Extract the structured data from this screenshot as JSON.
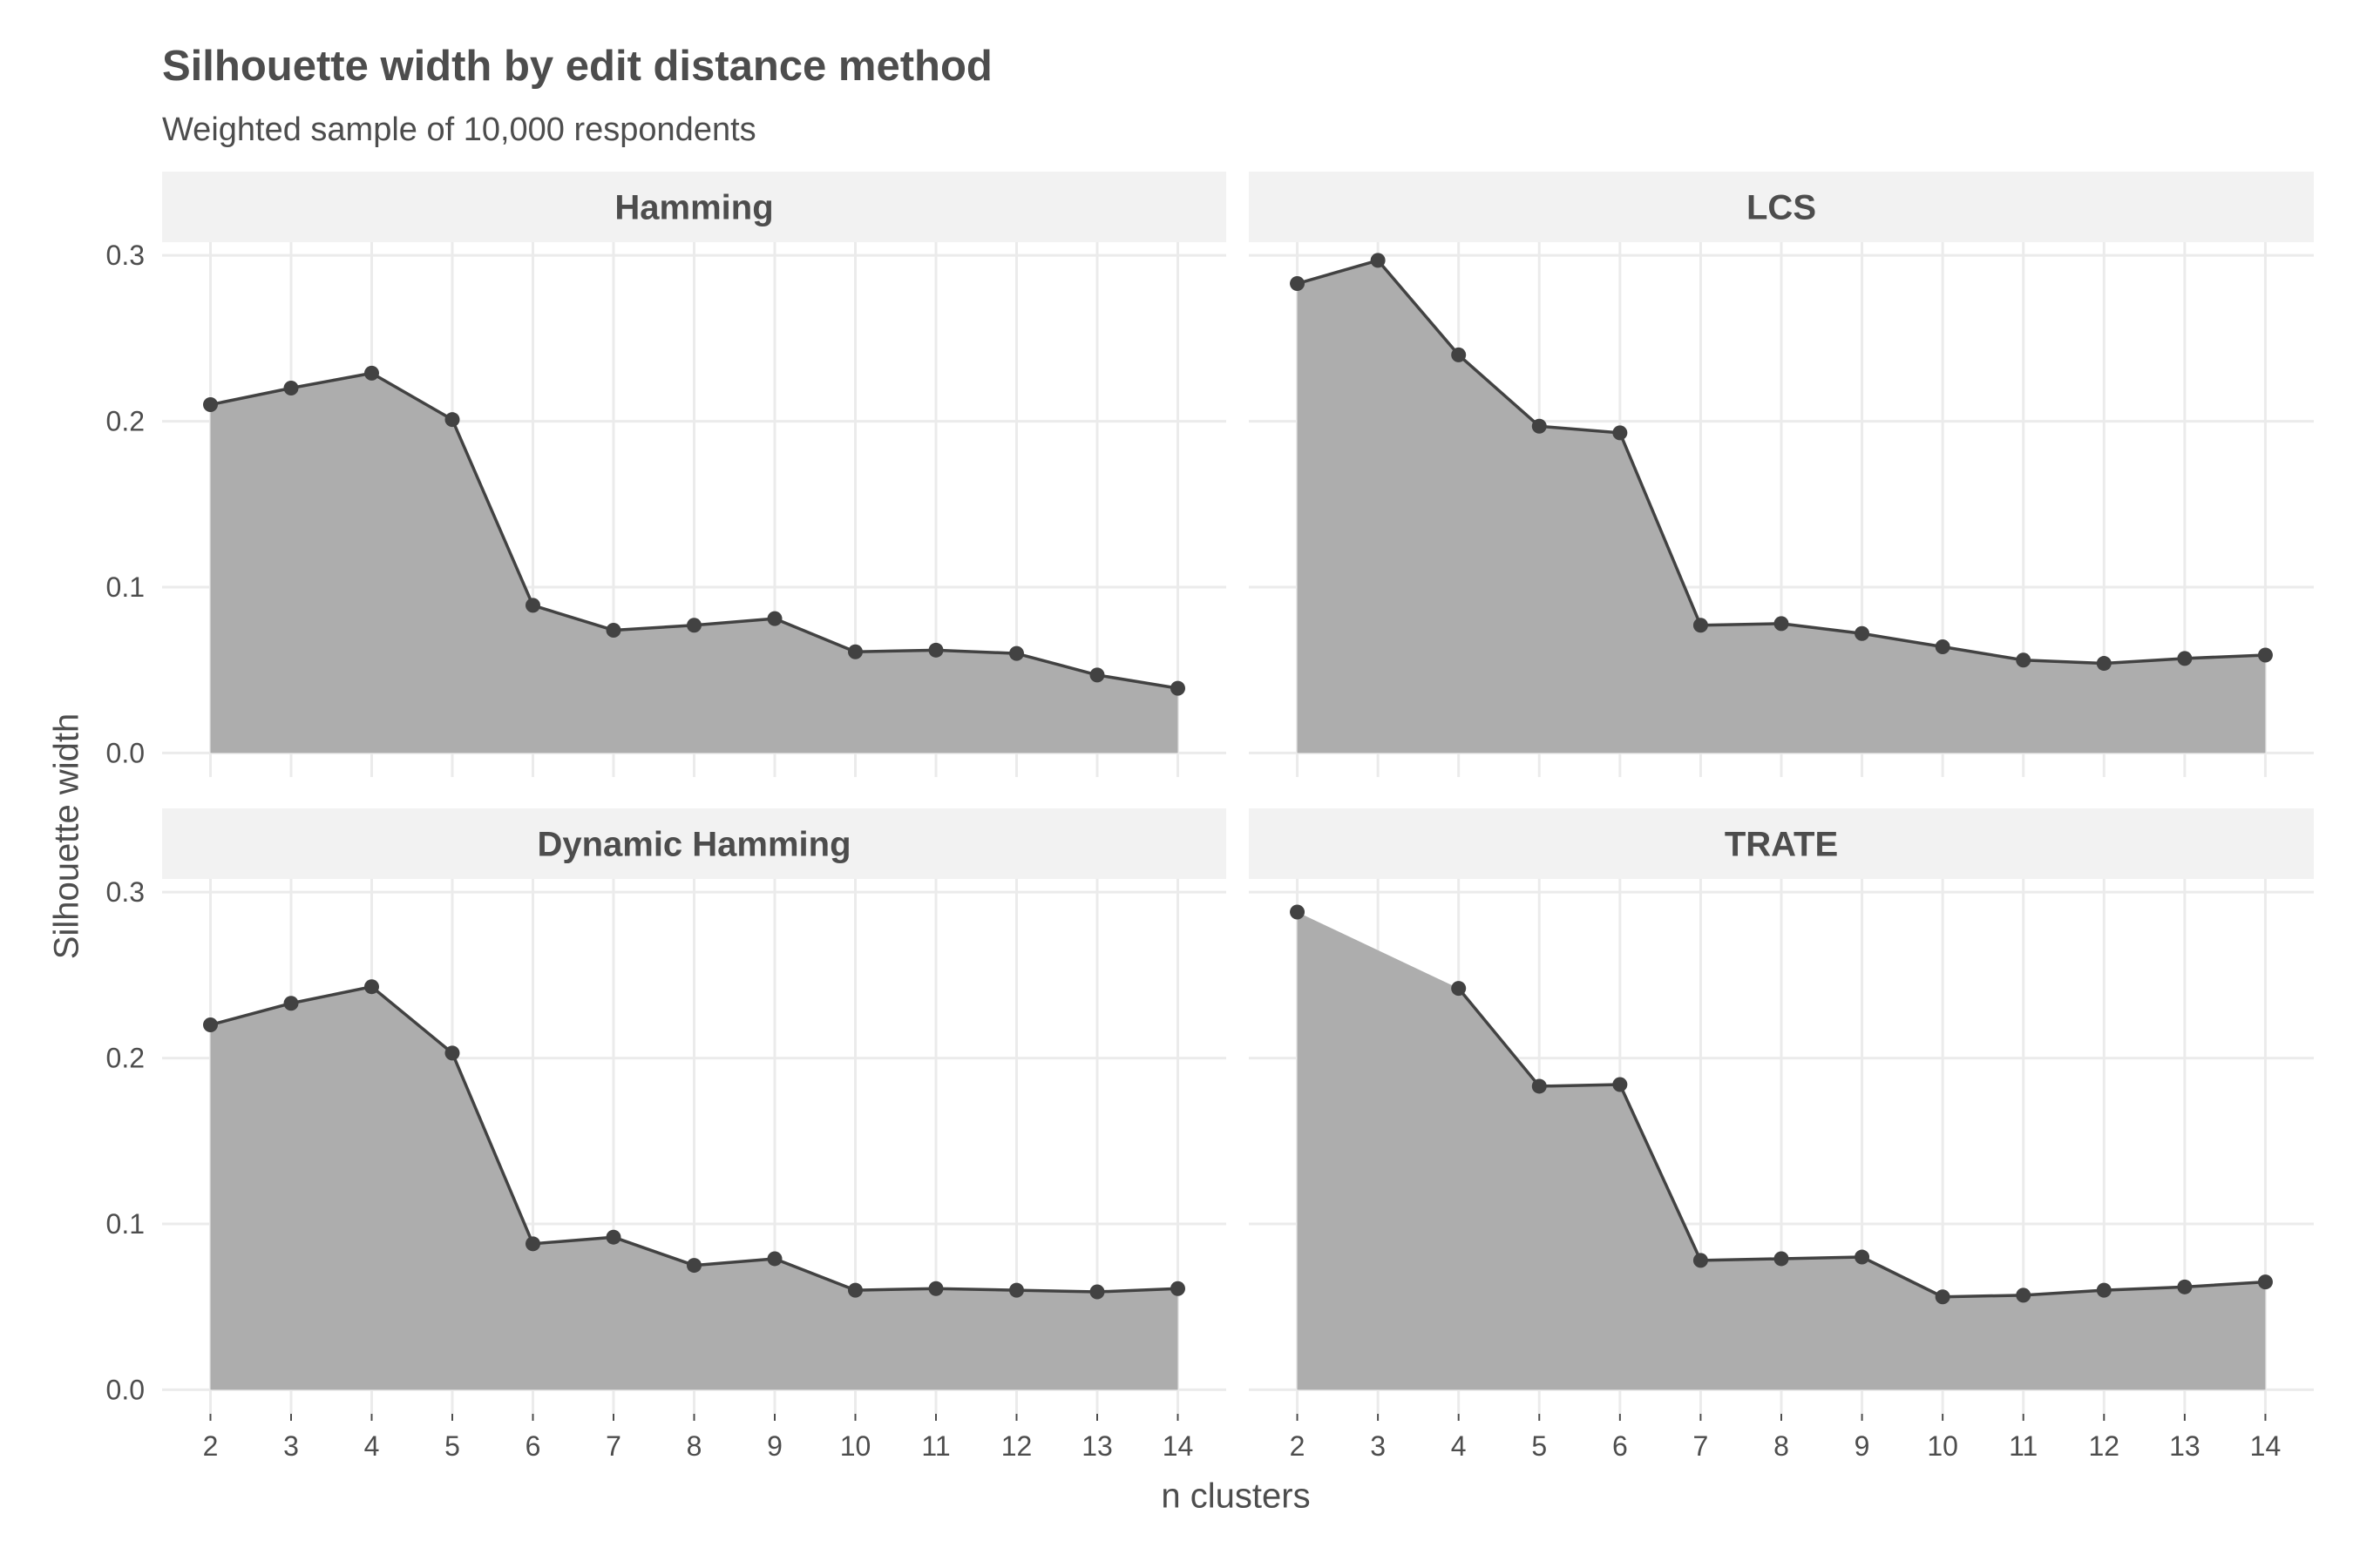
{
  "chart_data": {
    "type": "area",
    "title": "Silhouette width by edit distance method",
    "subtitle": "Weighted sample of 10,000 respondents",
    "xlabel": "n clusters",
    "ylabel": "Silhouette width",
    "x": [
      2,
      3,
      4,
      5,
      6,
      7,
      8,
      9,
      10,
      11,
      12,
      13,
      14
    ],
    "ylim": [
      0,
      0.33
    ],
    "yticks": [
      0.0,
      0.1,
      0.2,
      0.3
    ],
    "ytick_labels": [
      "0.0",
      "0.1",
      "0.2",
      "0.3"
    ],
    "grid": true,
    "colors": {
      "area": "#adadad",
      "line": "#424242",
      "point": "#424242",
      "strip": "#f2f2f2",
      "grid": "#ebebeb"
    },
    "panels": [
      {
        "name": "Hamming",
        "x": [
          2,
          3,
          4,
          5,
          6,
          7,
          8,
          9,
          10,
          11,
          12,
          13,
          14
        ],
        "values": [
          0.21,
          0.22,
          0.229,
          0.201,
          0.089,
          0.074,
          0.077,
          0.081,
          0.061,
          0.062,
          0.06,
          0.047,
          0.039
        ]
      },
      {
        "name": "LCS",
        "x": [
          2,
          3,
          4,
          5,
          6,
          7,
          8,
          9,
          10,
          11,
          12,
          13,
          14
        ],
        "values": [
          0.283,
          0.297,
          0.24,
          0.197,
          0.193,
          0.077,
          0.078,
          0.072,
          0.064,
          0.056,
          0.054,
          0.057,
          0.059
        ]
      },
      {
        "name": "Dynamic Hamming",
        "x": [
          2,
          3,
          4,
          5,
          6,
          7,
          8,
          9,
          10,
          11,
          12,
          13,
          14
        ],
        "values": [
          0.22,
          0.233,
          0.243,
          0.203,
          0.088,
          0.092,
          0.075,
          0.079,
          0.06,
          0.061,
          0.06,
          0.059,
          0.061
        ]
      },
      {
        "name": "TRATE",
        "x": [
          2,
          4,
          5,
          6,
          7,
          8,
          9,
          10,
          11,
          12,
          13,
          14
        ],
        "values": [
          0.288,
          0.242,
          0.183,
          0.184,
          0.078,
          0.079,
          0.08,
          0.056,
          0.057,
          0.06,
          0.062,
          0.065
        ]
      }
    ]
  }
}
